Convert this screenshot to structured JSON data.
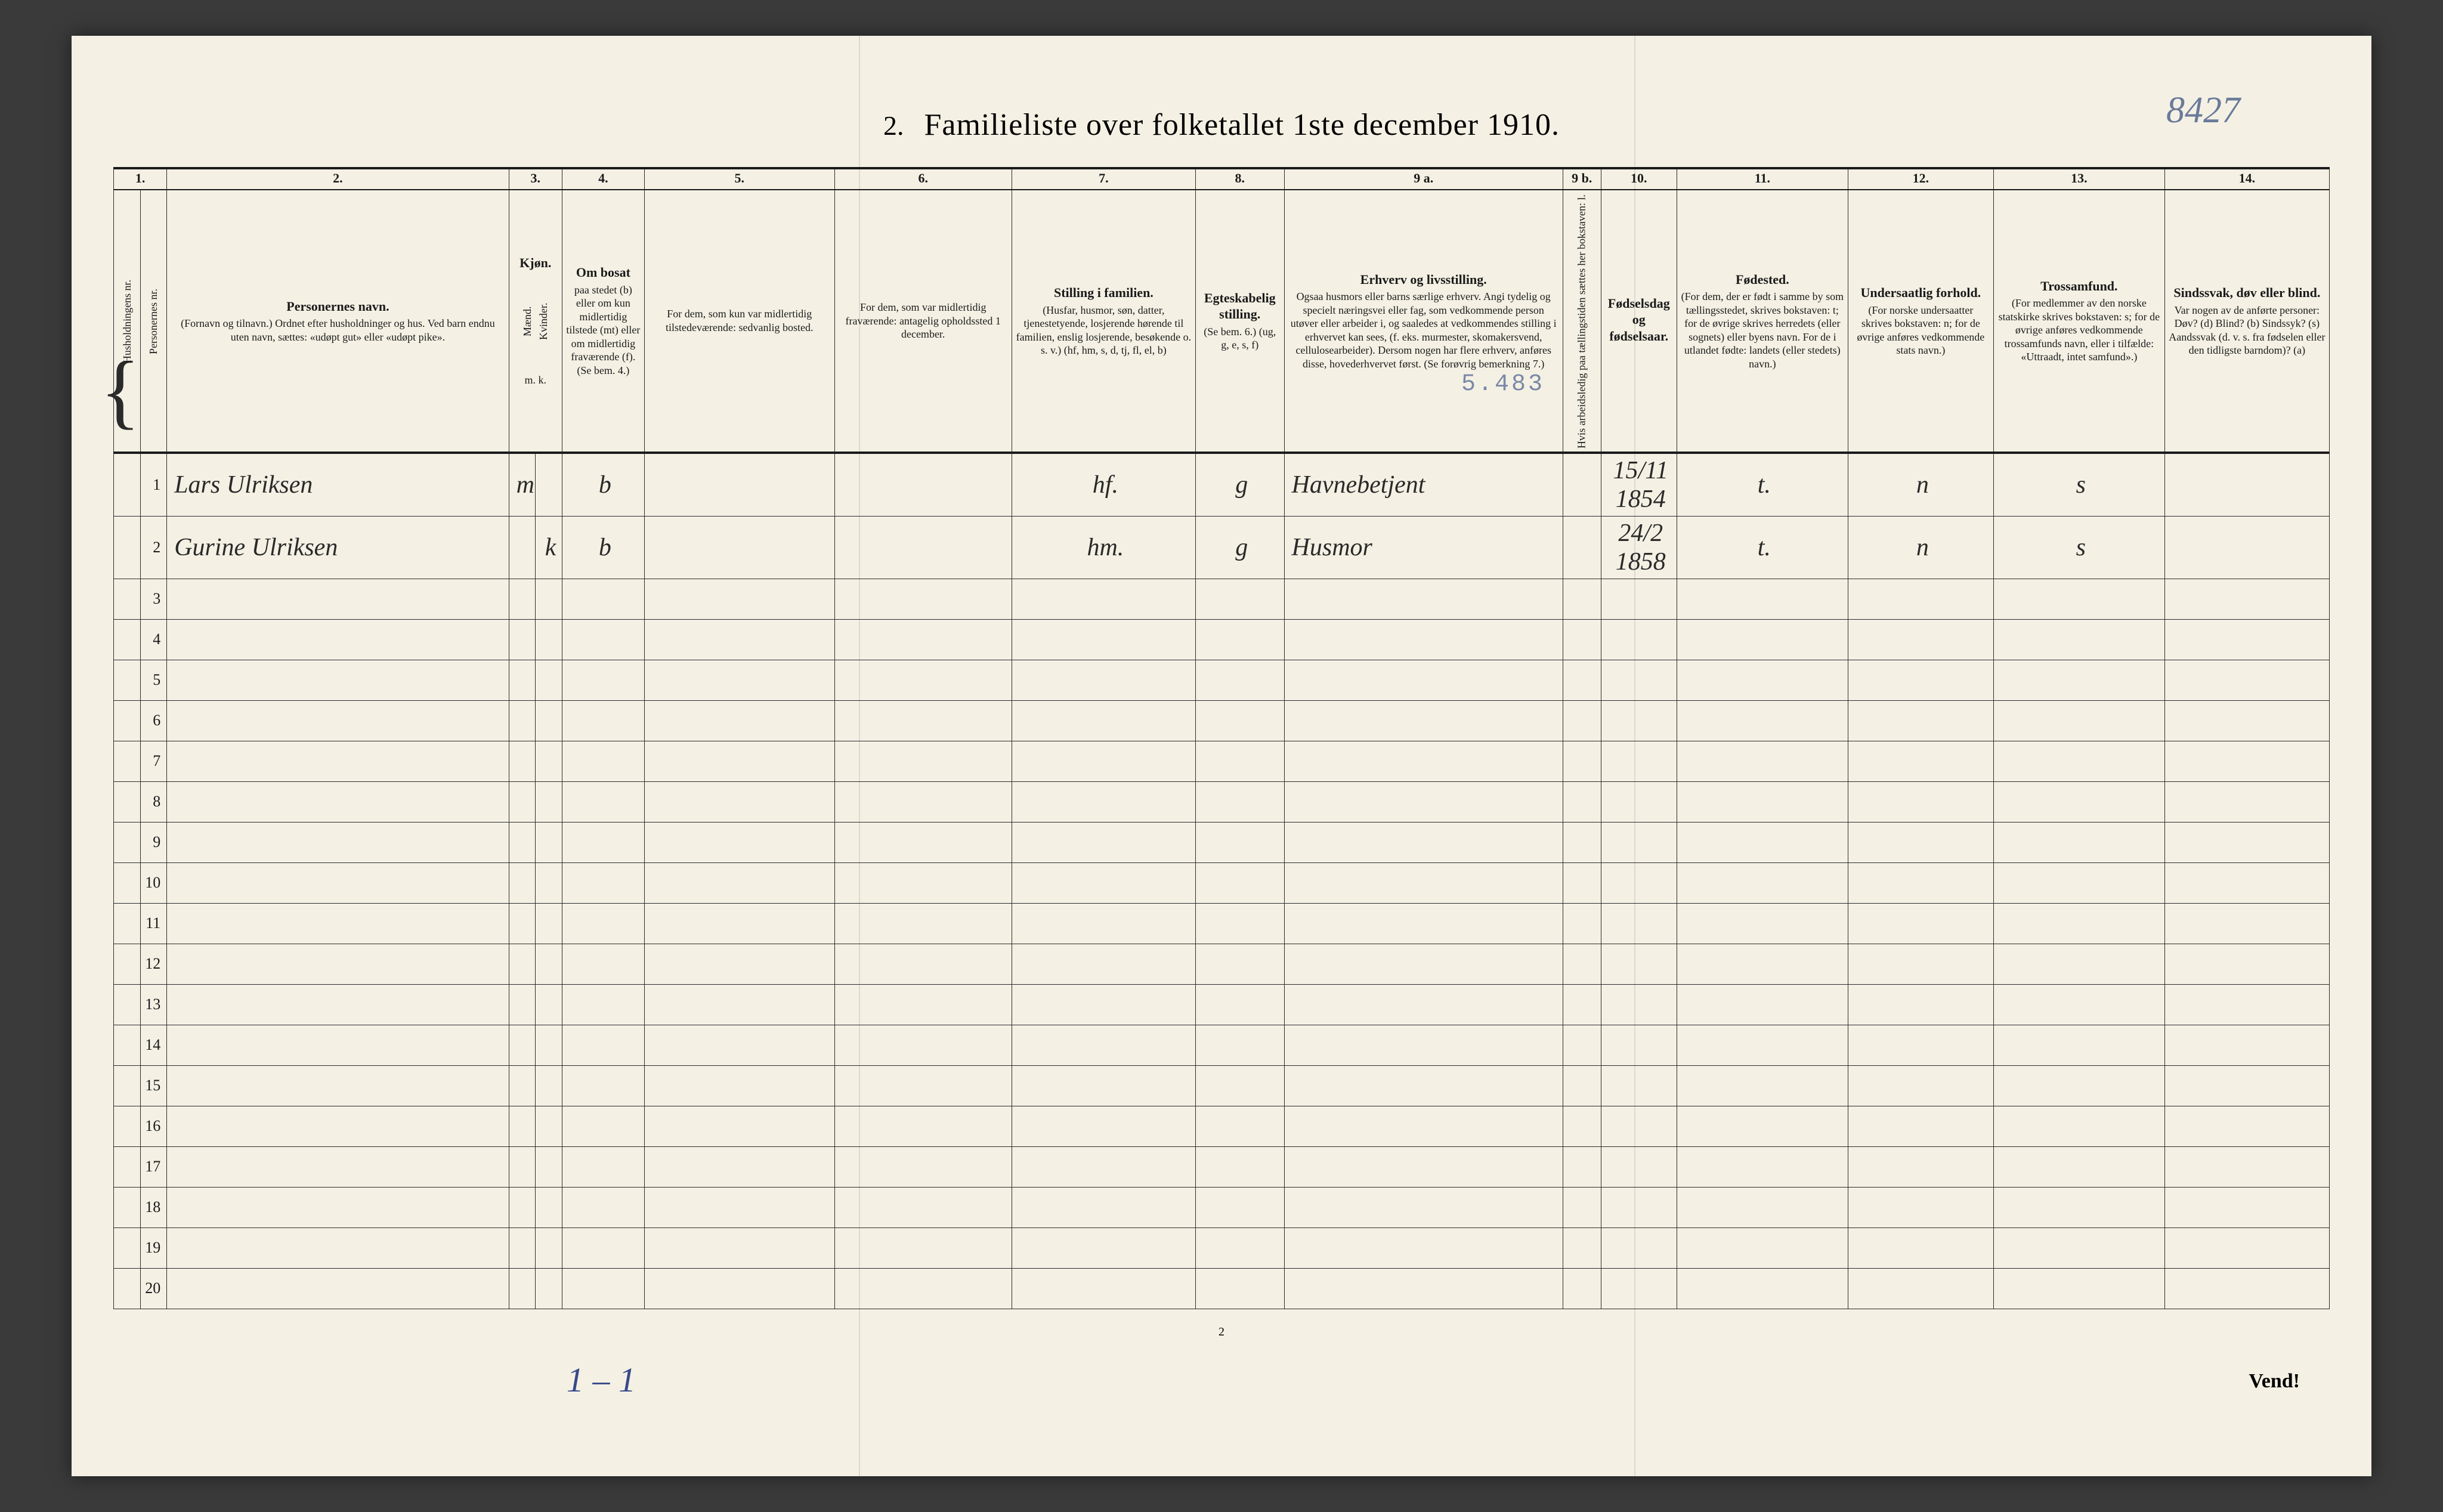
{
  "form": {
    "number": "2.",
    "title": "Familieliste over folketallet 1ste december 1910.",
    "handwritten_id": "8427",
    "page_number": "2",
    "turn_over": "Vend!",
    "bottom_handwriting": "1 – 1"
  },
  "colors": {
    "paper": "#f4f1e4",
    "ink": "#1a1a1a",
    "pencil_blue": "#6a7a9a",
    "pen_blue": "#3a4a8a",
    "stamp": "#7a88a8",
    "background": "#3a3a3a"
  },
  "column_numbers": [
    "1.",
    "",
    "2.",
    "3.",
    "",
    "4.",
    "5.",
    "6.",
    "7.",
    "8.",
    "9 a.",
    "9 b.",
    "10.",
    "11.",
    "12.",
    "13.",
    "14."
  ],
  "headers": {
    "c1a": "Husholdningens nr.",
    "c1b": "Personernes nr.",
    "c2": {
      "title": "Personernes navn.",
      "sub": "(Fornavn og tilnavn.)\nOrdnet efter husholdninger og hus.\nVed barn endnu uten navn, sættes: «udøpt gut» eller «udøpt pike»."
    },
    "c3": {
      "title": "Kjøn.",
      "m": "Mænd.",
      "k": "Kvinder.",
      "foot": "m.  k."
    },
    "c4": {
      "title": "Om bosat",
      "sub": "paa stedet (b) eller om kun midlertidig tilstede (mt) eller om midlertidig fraværende (f).\n(Se bem. 4.)"
    },
    "c5": {
      "title": "",
      "sub": "For dem, som kun var midlertidig tilstedeværende:\nsedvanlig bosted."
    },
    "c6": {
      "title": "",
      "sub": "For dem, som var midlertidig fraværende:\nantagelig opholdssted 1 december."
    },
    "c7": {
      "title": "Stilling i familien.",
      "sub": "(Husfar, husmor, søn, datter, tjenestetyende, losjerende hørende til familien, enslig losjerende, besøkende o. s. v.)\n(hf, hm, s, d, tj, fl, el, b)"
    },
    "c8": {
      "title": "Egteskabelig stilling.",
      "sub": "(Se bem. 6.)\n(ug, g, e, s, f)"
    },
    "c9a": {
      "title": "Erhverv og livsstilling.",
      "sub": "Ogsaa husmors eller barns særlige erhverv. Angi tydelig og specielt næringsvei eller fag, som vedkommende person utøver eller arbeider i, og saaledes at vedkommendes stilling i erhvervet kan sees, (f. eks. murmester, skomakersvend, cellulosearbeider). Dersom nogen har flere erhverv, anføres disse, hovederhvervet først.\n(Se forøvrig bemerkning 7.)"
    },
    "c9b": "Hvis arbeidsledig paa tællingstiden sættes her bokstaven: l.",
    "c10": {
      "title": "Fødselsdag og fødselsaar.",
      "sub": ""
    },
    "c11": {
      "title": "Fødested.",
      "sub": "(For dem, der er født i samme by som tællingsstedet, skrives bokstaven: t; for de øvrige skrives herredets (eller sognets) eller byens navn. For de i utlandet fødte: landets (eller stedets) navn.)"
    },
    "c12": {
      "title": "Undersaatlig forhold.",
      "sub": "(For norske undersaatter skrives bokstaven: n; for de øvrige anføres vedkommende stats navn.)"
    },
    "c13": {
      "title": "Trossamfund.",
      "sub": "(For medlemmer av den norske statskirke skrives bokstaven: s; for de øvrige anføres vedkommende trossamfunds navn, eller i tilfælde: «Uttraadt, intet samfund».)"
    },
    "c14": {
      "title": "Sindssvak, døv eller blind.",
      "sub": "Var nogen av de anførte personer:\nDøv? (d)\nBlind? (b)\nSindssyk? (s)\nAandssvak (d. v. s. fra fødselen eller den tidligste barndom)? (a)"
    }
  },
  "stamp": "5.483",
  "rows": [
    {
      "n": "1",
      "name": "Lars Ulriksen",
      "m": "m",
      "k": "",
      "bosat": "b",
      "c5": "",
      "c6": "",
      "stilling": "hf.",
      "egte": "g",
      "erhverv": "Havnebetjent",
      "c9b": "",
      "fodsel": "15/11 1854",
      "fodested": "t.",
      "under": "n",
      "tros": "s",
      "c14": ""
    },
    {
      "n": "2",
      "name": "Gurine Ulriksen",
      "m": "",
      "k": "k",
      "bosat": "b",
      "c5": "",
      "c6": "",
      "stilling": "hm.",
      "egte": "g",
      "erhverv": "Husmor",
      "c9b": "",
      "fodsel": "24/2 1858",
      "fodested": "t.",
      "under": "n",
      "tros": "s",
      "c14": ""
    }
  ],
  "blank_row_numbers": [
    "3",
    "4",
    "5",
    "6",
    "7",
    "8",
    "9",
    "10",
    "11",
    "12",
    "13",
    "14",
    "15",
    "16",
    "17",
    "18",
    "19",
    "20"
  ]
}
